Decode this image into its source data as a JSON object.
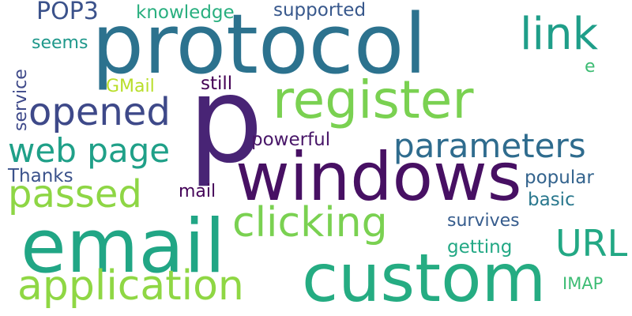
{
  "words": [
    {
      "id": "p",
      "text": "p",
      "color": "#482475"
    },
    {
      "id": "protocol",
      "text": "protocol",
      "color": "#2c728e"
    },
    {
      "id": "windows",
      "text": "windows",
      "color": "#471063"
    },
    {
      "id": "email",
      "text": "email",
      "color": "#21a685"
    },
    {
      "id": "custom",
      "text": "custom",
      "color": "#25ac82"
    },
    {
      "id": "register",
      "text": "register",
      "color": "#7ad151"
    },
    {
      "id": "application",
      "text": "application",
      "color": "#8fd744"
    },
    {
      "id": "clicking",
      "text": "clicking",
      "color": "#7ad151"
    },
    {
      "id": "parameters",
      "text": "parameters",
      "color": "#2f6c8e"
    },
    {
      "id": "opened",
      "text": "opened",
      "color": "#3e4989"
    },
    {
      "id": "web-page",
      "text": "web page",
      "color": "#1fa088"
    },
    {
      "id": "passed",
      "text": "passed",
      "color": "#8ed645"
    },
    {
      "id": "link",
      "text": "link",
      "color": "#1f9e89"
    },
    {
      "id": "url",
      "text": "URL",
      "color": "#22a884"
    },
    {
      "id": "pop3",
      "text": "POP3",
      "color": "#3b528b"
    },
    {
      "id": "knowledge",
      "text": "knowledge",
      "color": "#29af7f"
    },
    {
      "id": "supported",
      "text": "supported",
      "color": "#38588c"
    },
    {
      "id": "seems",
      "text": "seems",
      "color": "#1f988b"
    },
    {
      "id": "gmail",
      "text": "GMail",
      "color": "#b8de29"
    },
    {
      "id": "still",
      "text": "still",
      "color": "#440154"
    },
    {
      "id": "powerful",
      "text": "powerful",
      "color": "#481668"
    },
    {
      "id": "thanks",
      "text": "Thanks",
      "color": "#3b528b"
    },
    {
      "id": "mail",
      "text": "mail",
      "color": "#450559"
    },
    {
      "id": "popular",
      "text": "popular",
      "color": "#33638d"
    },
    {
      "id": "basic",
      "text": "basic",
      "color": "#2a788e"
    },
    {
      "id": "survives",
      "text": "survives",
      "color": "#365c8d"
    },
    {
      "id": "getting",
      "text": "getting",
      "color": "#22a884"
    },
    {
      "id": "imap",
      "text": "IMAP",
      "color": "#3dbc74"
    },
    {
      "id": "e",
      "text": "e",
      "color": "#3dbc74"
    },
    {
      "id": "service",
      "text": "service",
      "color": "#3e4989"
    }
  ]
}
